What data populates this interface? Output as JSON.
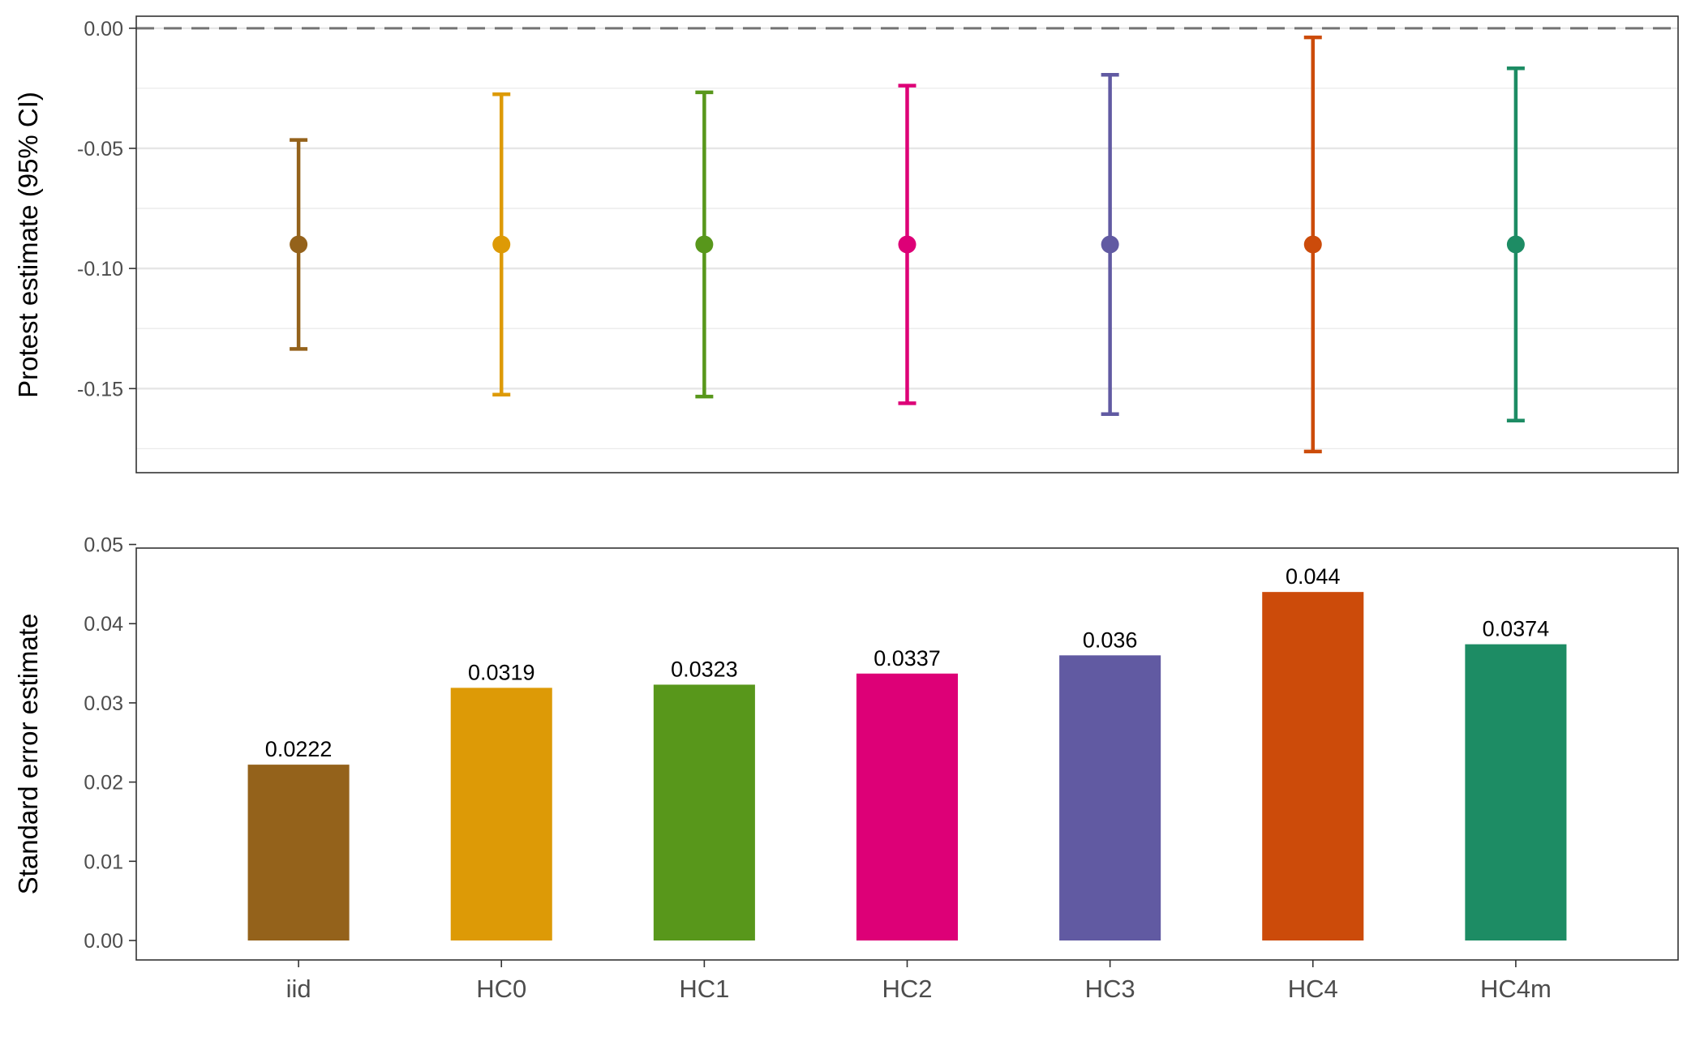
{
  "chart_data": [
    {
      "type": "errorbar",
      "ylabel": "Protest estimate (95% CI)",
      "ylim": [
        -0.185,
        0.005
      ],
      "y_ticks": [
        "0.00",
        "-0.05",
        "-0.10",
        "-0.15"
      ],
      "reference_line": 0.0,
      "grid": true,
      "categories": [
        "iid",
        "HC0",
        "HC1",
        "HC2",
        "HC3",
        "HC4",
        "HC4m"
      ],
      "estimate": [
        -0.09,
        -0.09,
        -0.09,
        -0.09,
        -0.09,
        -0.09,
        -0.09
      ],
      "lower": [
        -0.1335,
        -0.1525,
        -0.1533,
        -0.1561,
        -0.1606,
        -0.1762,
        -0.1633
      ],
      "upper": [
        -0.0465,
        -0.0275,
        -0.0267,
        -0.0239,
        -0.0194,
        -0.0038,
        -0.0167
      ]
    },
    {
      "type": "bar",
      "ylabel": "Standard error estimate",
      "ylim": [
        0,
        0.052
      ],
      "y_ticks": [
        "0.00",
        "0.01",
        "0.02",
        "0.03",
        "0.04",
        "0.05"
      ],
      "grid": false,
      "categories": [
        "iid",
        "HC0",
        "HC1",
        "HC2",
        "HC3",
        "HC4",
        "HC4m"
      ],
      "values": [
        0.0222,
        0.0319,
        0.0323,
        0.0337,
        0.036,
        0.044,
        0.0374
      ],
      "labels": [
        "0.0222",
        "0.0319",
        "0.0323",
        "0.0337",
        "0.036",
        "0.044",
        "0.0374"
      ]
    }
  ],
  "colors": [
    "#94621b",
    "#dd9a06",
    "#58971b",
    "#dd0077",
    "#615aa2",
    "#cc4b0a",
    "#1d8c64"
  ]
}
